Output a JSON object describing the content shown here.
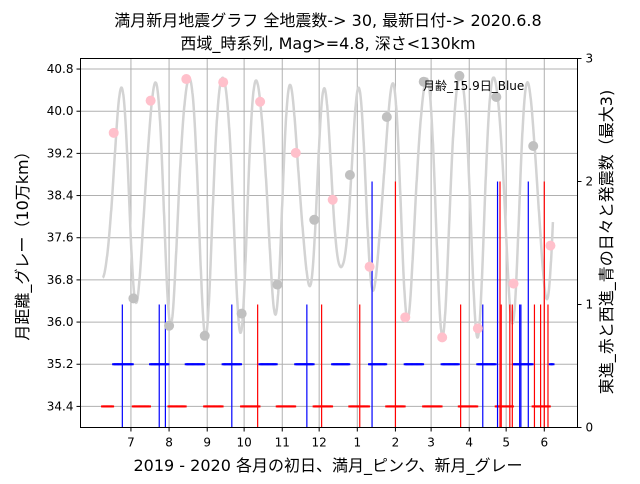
{
  "chart_data": {
    "type": "line",
    "title": "満月新月地震グラフ  全地震数-> 30,  最新日付-> 2020.6.8",
    "subtitle": "西域_時系列,  Mag>=4.8,  深さ<130km",
    "xlabel": "2019 - 2020 各月の初日、満月_ピンク、新月_グレー",
    "ylabel": "月距離_グレー（10万km）",
    "ylabel_right": "東進_赤と西進_青の日々と発震数（最大3)",
    "annotation": "月齢_15.9日_Blue",
    "xlim": [
      "2019-05-21",
      "2020-06-28"
    ],
    "ylim": [
      34.0,
      41.0
    ],
    "ylim_right": [
      0,
      3
    ],
    "grid": true,
    "x_ticks": [
      {
        "date": "2019-07-01",
        "label": "7"
      },
      {
        "date": "2019-08-01",
        "label": "8"
      },
      {
        "date": "2019-09-01",
        "label": "9"
      },
      {
        "date": "2019-10-01",
        "label": "10"
      },
      {
        "date": "2019-11-01",
        "label": "11"
      },
      {
        "date": "2019-12-01",
        "label": "12"
      },
      {
        "date": "2020-01-01",
        "label": "1"
      },
      {
        "date": "2020-02-01",
        "label": "2"
      },
      {
        "date": "2020-03-01",
        "label": "3"
      },
      {
        "date": "2020-04-01",
        "label": "4"
      },
      {
        "date": "2020-05-01",
        "label": "5"
      },
      {
        "date": "2020-06-01",
        "label": "6"
      }
    ],
    "y_ticks": [
      "34.4",
      "35.2",
      "36.0",
      "36.8",
      "37.6",
      "38.4",
      "39.2",
      "40.0",
      "40.8"
    ],
    "y_ticks_right": [
      "0",
      "1",
      "2",
      "3"
    ],
    "distance_curve": {
      "start": "2019-06-08",
      "end": "2020-06-08",
      "color": "#d3d3d3"
    },
    "full_moons": {
      "color": "#ffc0cb",
      "points": [
        {
          "date": "2019-06-17",
          "distance": 39.59
        },
        {
          "date": "2019-07-17",
          "distance": 40.2
        },
        {
          "date": "2019-08-15",
          "distance": 40.61
        },
        {
          "date": "2019-09-14",
          "distance": 40.55
        },
        {
          "date": "2019-10-14",
          "distance": 40.18
        },
        {
          "date": "2019-11-12",
          "distance": 39.21
        },
        {
          "date": "2019-12-12",
          "distance": 38.32
        },
        {
          "date": "2020-01-11",
          "distance": 37.05
        },
        {
          "date": "2020-02-09",
          "distance": 36.09
        },
        {
          "date": "2020-03-10",
          "distance": 35.71
        },
        {
          "date": "2020-04-08",
          "distance": 35.88
        },
        {
          "date": "2020-05-07",
          "distance": 36.73
        },
        {
          "date": "2020-06-06",
          "distance": 37.45
        }
      ]
    },
    "new_moons": {
      "color": "#c0c0c0",
      "points": [
        {
          "date": "2019-07-03",
          "distance": 36.45
        },
        {
          "date": "2019-08-01",
          "distance": 35.93
        },
        {
          "date": "2019-08-30",
          "distance": 35.74
        },
        {
          "date": "2019-09-29",
          "distance": 36.16
        },
        {
          "date": "2019-10-28",
          "distance": 36.71
        },
        {
          "date": "2019-11-27",
          "distance": 37.94
        },
        {
          "date": "2019-12-26",
          "distance": 38.79
        },
        {
          "date": "2020-01-25",
          "distance": 39.89
        },
        {
          "date": "2020-02-24",
          "distance": 40.56
        },
        {
          "date": "2020-03-24",
          "distance": 40.67
        },
        {
          "date": "2020-04-23",
          "distance": 40.27
        },
        {
          "date": "2020-05-23",
          "distance": 39.34
        }
      ]
    },
    "day_rows": {
      "east_red": {
        "color": "#ff0000",
        "value": 34.4,
        "phase": "new-to-full"
      },
      "west_blue": {
        "color": "#0000ff",
        "value": 35.2,
        "phase": "full-to-new"
      }
    },
    "events": [
      {
        "date": "2019-06-24",
        "count": 1,
        "color": "#0000ff"
      },
      {
        "date": "2019-07-24",
        "count": 1,
        "color": "#0000ff"
      },
      {
        "date": "2019-07-29",
        "count": 1,
        "color": "#0000ff"
      },
      {
        "date": "2019-09-21",
        "count": 1,
        "color": "#0000ff"
      },
      {
        "date": "2019-10-12",
        "count": 1,
        "color": "#ff0000"
      },
      {
        "date": "2019-11-21",
        "count": 1,
        "color": "#0000ff"
      },
      {
        "date": "2019-12-03",
        "count": 1,
        "color": "#ff0000"
      },
      {
        "date": "2020-01-03",
        "count": 1,
        "color": "#ff0000"
      },
      {
        "date": "2020-01-13",
        "count": 2,
        "color": "#0000ff"
      },
      {
        "date": "2020-02-01",
        "count": 2,
        "color": "#ff0000"
      },
      {
        "date": "2020-03-25",
        "count": 1,
        "color": "#ff0000"
      },
      {
        "date": "2020-04-12",
        "count": 1,
        "color": "#0000ff"
      },
      {
        "date": "2020-04-24",
        "count": 2,
        "color": "#0000ff"
      },
      {
        "date": "2020-04-26",
        "count": 2,
        "color": "#ff0000"
      },
      {
        "date": "2020-04-27",
        "count": 1,
        "color": "#ff0000"
      },
      {
        "date": "2020-05-04",
        "count": 1,
        "color": "#ff0000"
      },
      {
        "date": "2020-05-06",
        "count": 1,
        "color": "#ff0000"
      },
      {
        "date": "2020-05-12",
        "count": 1,
        "color": "#0000ff"
      },
      {
        "date": "2020-05-13",
        "count": 1,
        "color": "#0000ff"
      },
      {
        "date": "2020-05-19",
        "count": 2,
        "color": "#0000ff"
      },
      {
        "date": "2020-05-24",
        "count": 1,
        "color": "#ff0000"
      },
      {
        "date": "2020-05-29",
        "count": 1,
        "color": "#ff0000"
      },
      {
        "date": "2020-06-01",
        "count": 2,
        "color": "#ff0000"
      },
      {
        "date": "2020-06-04",
        "count": 1,
        "color": "#ff0000"
      }
    ]
  }
}
